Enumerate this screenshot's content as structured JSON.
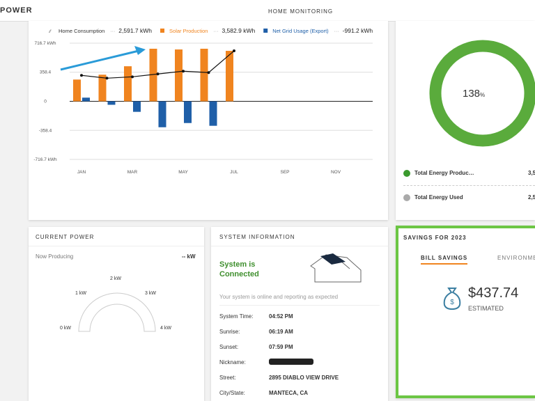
{
  "header": {
    "logo": "POWER",
    "title": "HOME MONITORING"
  },
  "chart_data": {
    "type": "bar",
    "categories": [
      "JAN",
      null,
      "MAR",
      null,
      "MAY",
      null,
      "JUL",
      null,
      "SEP",
      null,
      "NOV",
      null
    ],
    "series": [
      {
        "name": "Home Consumption",
        "type": "line",
        "color": "#111111",
        "total": "2,591.7 kWh",
        "values": [
          320,
          285,
          302,
          337,
          371,
          354,
          622,
          null,
          null,
          null,
          null,
          null
        ]
      },
      {
        "name": "Solar Production",
        "type": "bar",
        "color": "#f0841f",
        "total": "3,582.9 kWh",
        "values": [
          268,
          328,
          432,
          648,
          639,
          648,
          622,
          null,
          null,
          null,
          null,
          null
        ]
      },
      {
        "name": "Net Grid Usage (Export)",
        "type": "bar",
        "color": "#1f5fa8",
        "total": "-991.2 kWh",
        "values": [
          45,
          -43,
          -130,
          -320,
          -268,
          -302,
          null,
          null,
          null,
          null,
          null,
          null
        ]
      }
    ],
    "ylim": [
      -716.7,
      716.7
    ],
    "yticks": [
      {
        "value": 716.7,
        "label": "716.7 kWh"
      },
      358.4,
      0,
      -358.4,
      {
        "value": -716.7,
        "label": "-716.7 kWh"
      }
    ],
    "grid": true
  },
  "donut": {
    "value": "138",
    "unit": "%",
    "items": [
      {
        "label": "Total Energy Produc…",
        "value": "3,5"
      },
      {
        "label": "Total Energy Used",
        "value": "2,5"
      }
    ]
  },
  "current_power": {
    "title": "CURRENT POWER",
    "label": "Now Producing",
    "value": "-- kW",
    "gauge": [
      "0 kW",
      "1 kW",
      "2 kW",
      "3 kW",
      "4 kW"
    ]
  },
  "system_info": {
    "title": "SYSTEM INFORMATION",
    "status": "System is Connected",
    "message": "Your system is online and reporting as expected",
    "rows": [
      [
        "System Time:",
        "04:52 PM"
      ],
      [
        "Sunrise:",
        "06:19 AM"
      ],
      [
        "Sunset:",
        "07:59 PM"
      ],
      [
        "Nickname:"
      ],
      [
        "Street:",
        "2895 DIABLO VIEW DRIVE"
      ],
      [
        "City/State:",
        "MANTECA, CA"
      ]
    ]
  },
  "savings": {
    "title": "SAVINGS FOR 2023",
    "tabs": [
      "BILL SAVINGS",
      "ENVIRONME"
    ],
    "amount": "$437.74",
    "label": "ESTIMATED"
  }
}
